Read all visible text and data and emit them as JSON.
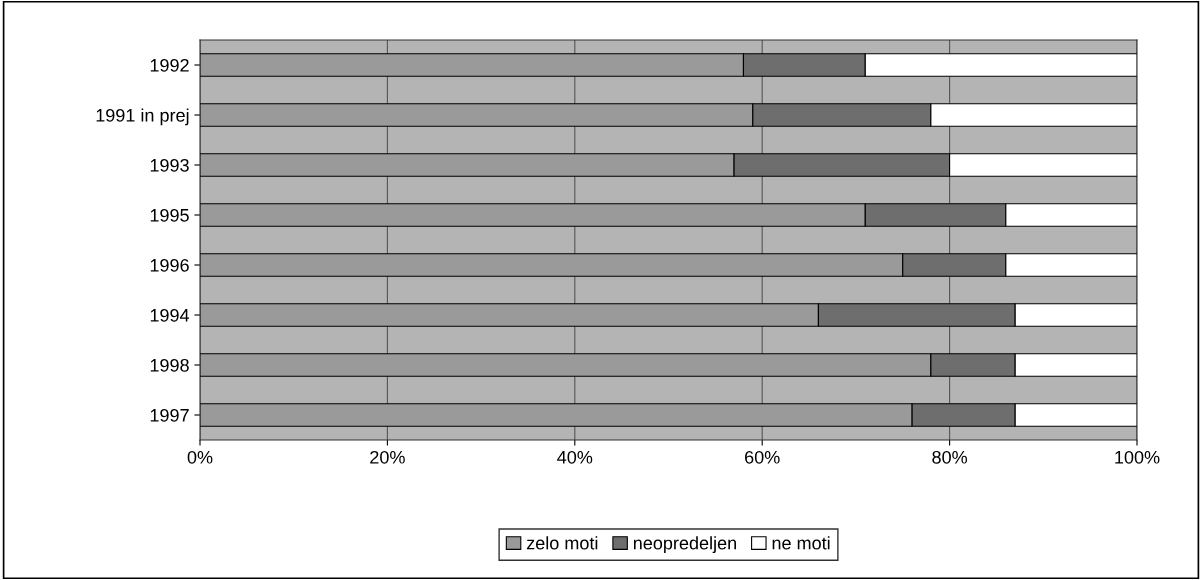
{
  "chart_data": {
    "type": "bar",
    "orientation": "horizontal",
    "stacked": true,
    "categories": [
      "1992",
      "1991 in prej",
      "1993",
      "1995",
      "1996",
      "1994",
      "1998",
      "1997"
    ],
    "series": [
      {
        "name": "zelo moti",
        "color": "#9a9a9a",
        "values": [
          58,
          59,
          57,
          71,
          75,
          66,
          78,
          76
        ]
      },
      {
        "name": "neopredeljen",
        "color": "#6e6e6e",
        "values": [
          13,
          19,
          23,
          15,
          11,
          21,
          9,
          11
        ]
      },
      {
        "name": "ne moti",
        "color": "#ffffff",
        "values": [
          29,
          22,
          20,
          14,
          14,
          13,
          13,
          13
        ]
      }
    ],
    "xlim": [
      0,
      100
    ],
    "xticks": [
      {
        "value": 0,
        "label": "0%"
      },
      {
        "value": 20,
        "label": "20%"
      },
      {
        "value": 40,
        "label": "40%"
      },
      {
        "value": 60,
        "label": "60%"
      },
      {
        "value": 80,
        "label": "80%"
      },
      {
        "value": 100,
        "label": "100%"
      }
    ],
    "grid": "x",
    "legend": "bottom"
  }
}
